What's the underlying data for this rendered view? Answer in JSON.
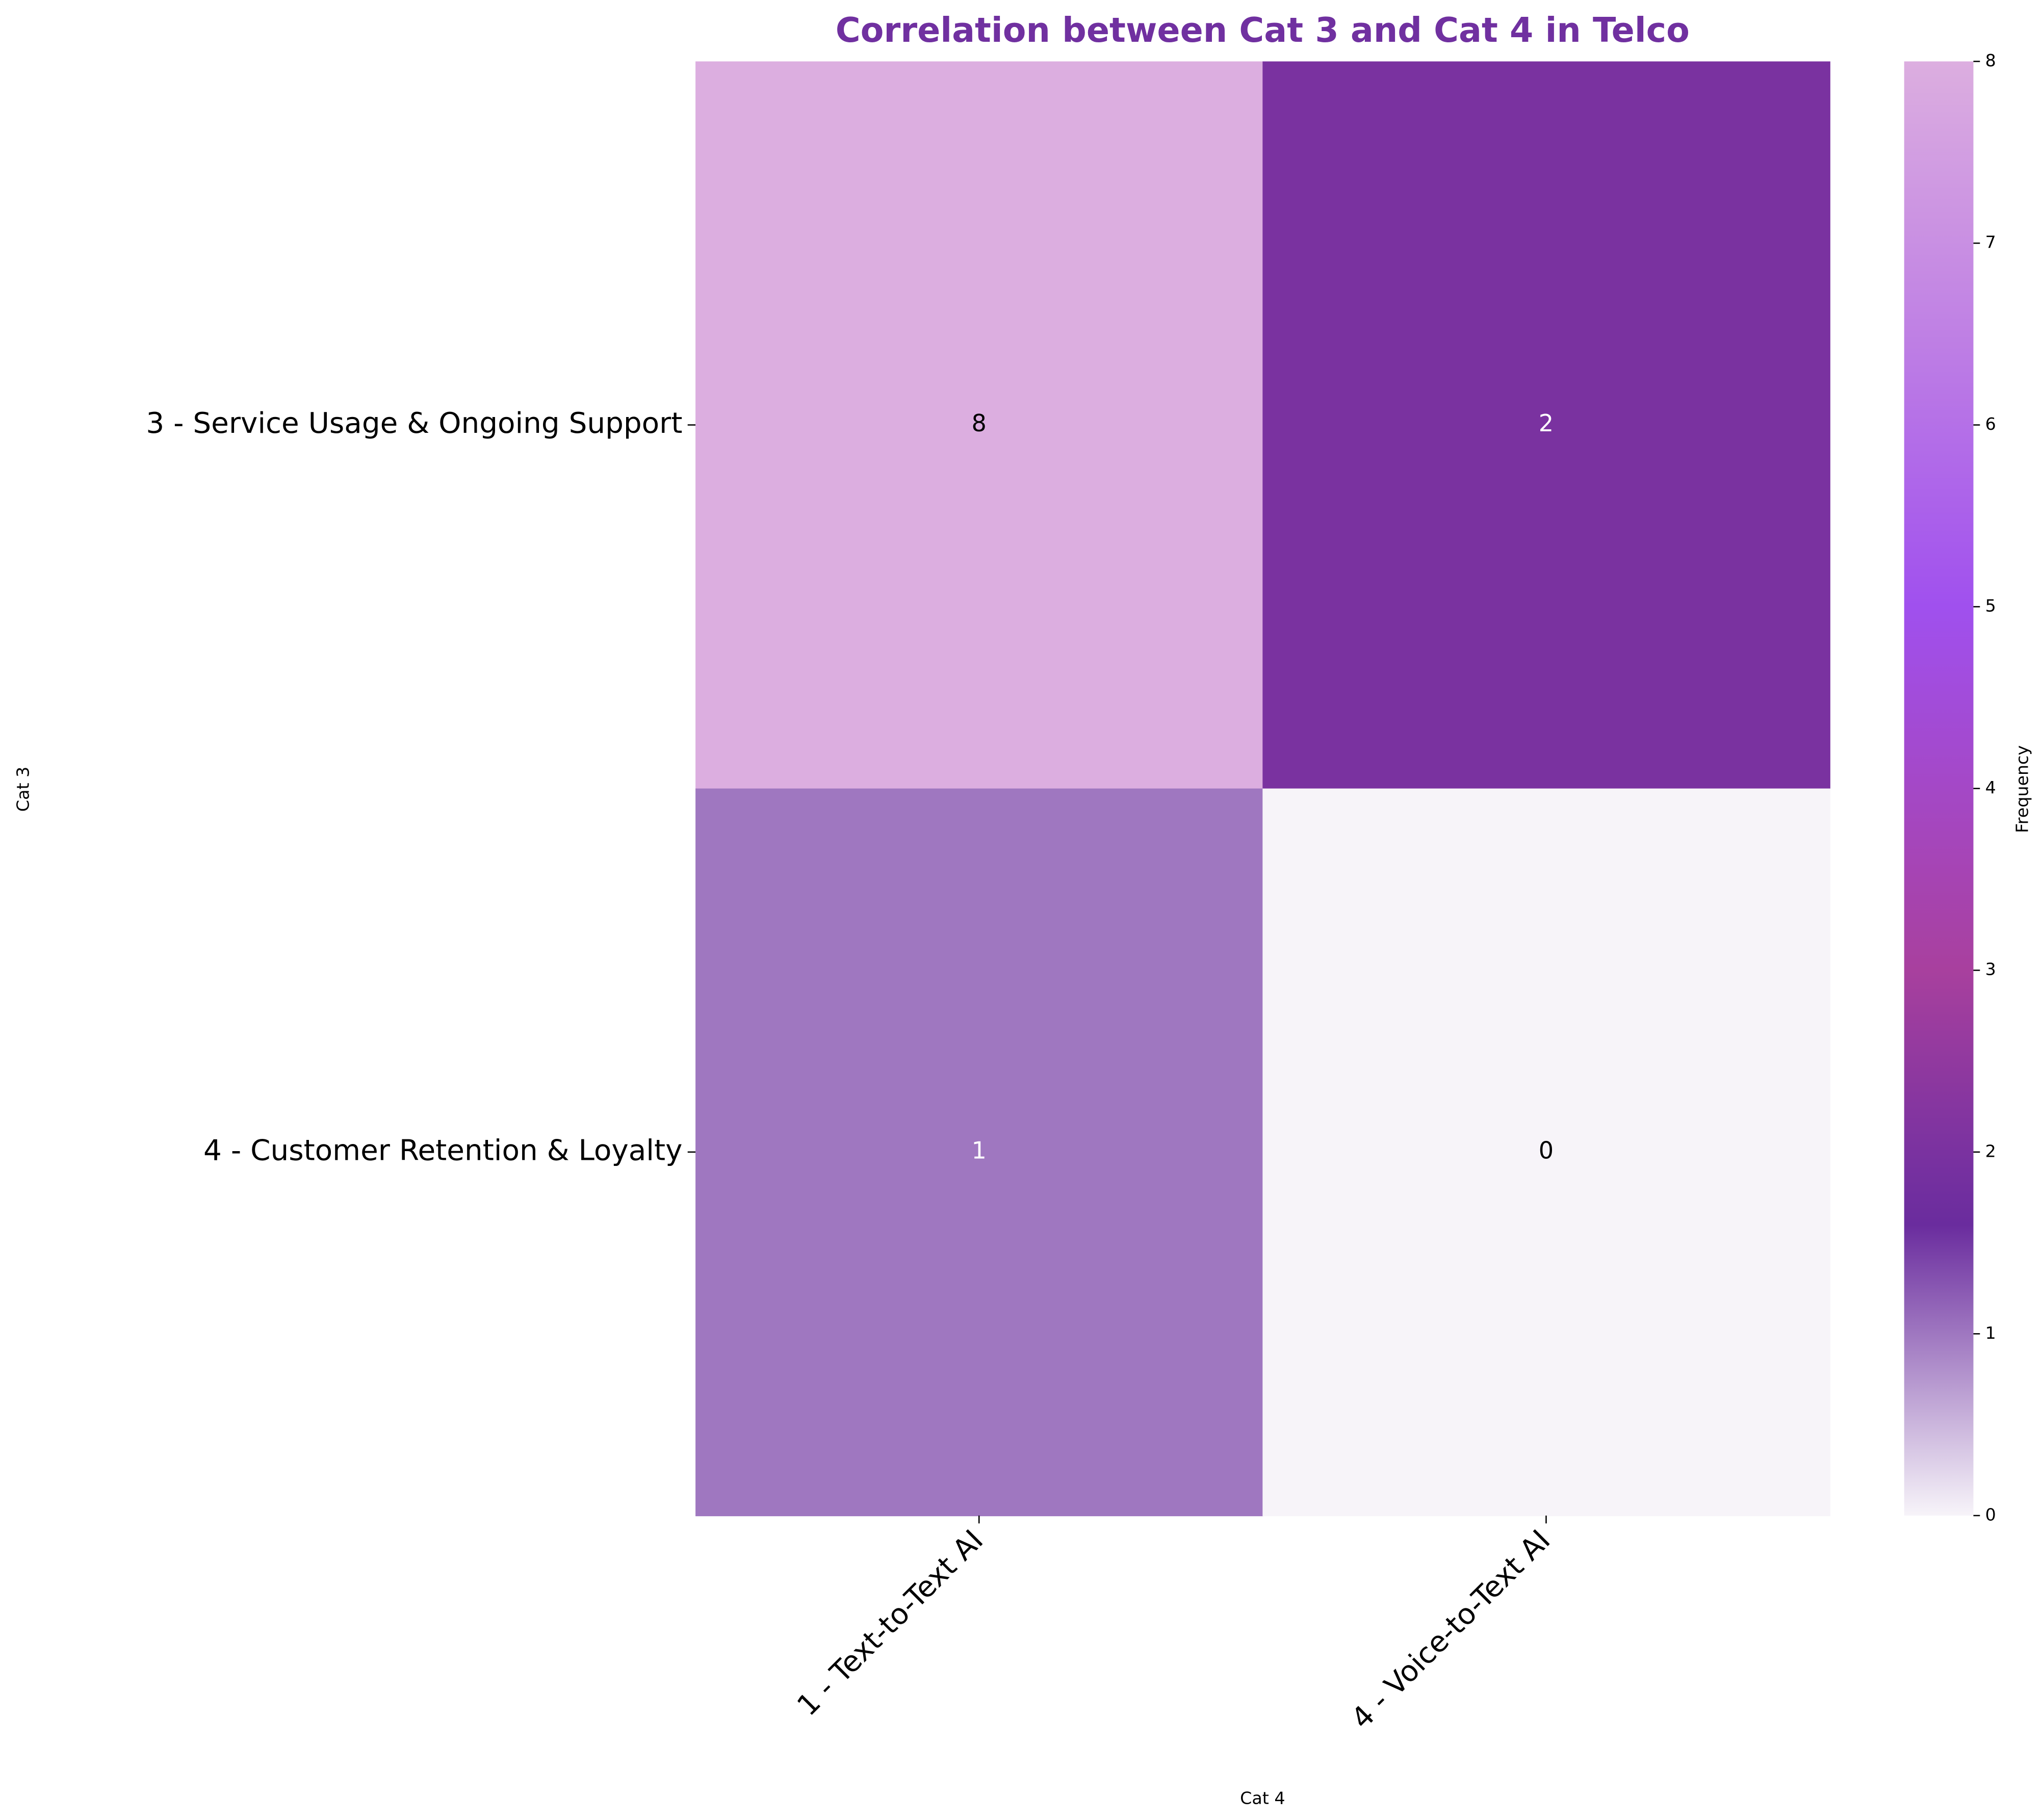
{
  "chart_data": {
    "type": "heatmap",
    "title": "Correlation between Cat 3 and Cat 4 in Telco",
    "x_label": "Cat 4",
    "y_label": "Cat 3",
    "x_categories": [
      "1 - Text-to-Text AI",
      "4 - Voice-to-Text AI"
    ],
    "y_categories": [
      "3 - Service Usage & Ongoing Support",
      "4 - Customer Retention & Loyalty"
    ],
    "values": [
      [
        8,
        2
      ],
      [
        1,
        0
      ]
    ],
    "colorbar_label": "Frequency",
    "clim": [
      0,
      8
    ],
    "cticks": [
      0,
      1,
      2,
      3,
      4,
      5,
      6,
      7,
      8
    ],
    "colorscale": [
      [
        0,
        "#f7f4f9"
      ],
      [
        1.6,
        "#6a2c9e"
      ],
      [
        2,
        "#7a32a0"
      ],
      [
        3,
        "#a8409e"
      ],
      [
        5,
        "#a050ee"
      ],
      [
        6.5,
        "#bf80e4"
      ],
      [
        8,
        "#dcaee0"
      ]
    ],
    "title_color": "#7030a0"
  }
}
